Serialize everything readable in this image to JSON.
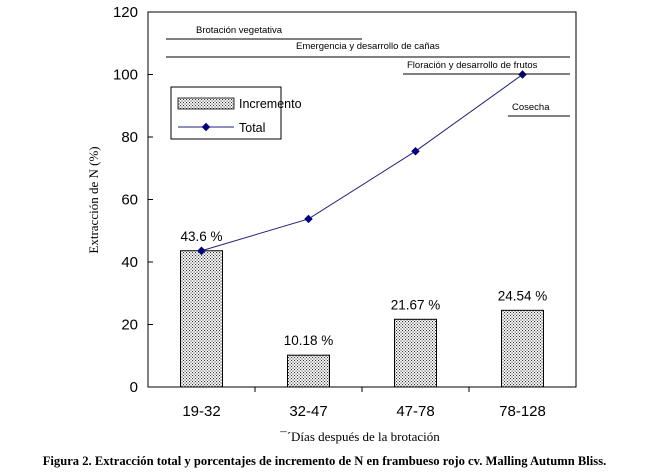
{
  "chart_data": {
    "type": "bar",
    "categories": [
      "19-32",
      "32-47",
      "47-78",
      "78-128"
    ],
    "series": [
      {
        "name": "Incremento",
        "kind": "bar",
        "values": [
          43.6,
          10.18,
          21.67,
          24.54
        ]
      },
      {
        "name": "Total",
        "kind": "line",
        "values": [
          43.6,
          53.78,
          75.45,
          99.99
        ]
      }
    ],
    "data_labels": [
      "43.6 %",
      "10.18 %",
      "21.67 %",
      "24.54 %"
    ],
    "ylim": [
      0,
      120
    ],
    "yticks": [
      0,
      20,
      40,
      60,
      80,
      100,
      120
    ],
    "ylabel": "Extracción de N  (%)",
    "xlabel": "¯´Días después de la brotación",
    "legend": {
      "position": "upper-left",
      "bar_label": "Incremento",
      "line_label": "Total"
    },
    "phases": [
      {
        "label": "Brotación vegetativa",
        "from_category": "19-32",
        "to_category": "32-47"
      },
      {
        "label": "Emergencia y desarrollo de cañas",
        "from_category": "19-32",
        "to_category": "78-128"
      },
      {
        "label": "Floración y desarrollo de frutos",
        "from_category": "47-78",
        "to_category": "78-128"
      },
      {
        "label": "Cosecha",
        "from_category": "78-128",
        "to_category": "78-128"
      }
    ],
    "colors": {
      "bar_fill": "#ffffff",
      "bar_pattern": "#333333",
      "line": "#1f1f7a",
      "marker": "#000080"
    }
  },
  "caption": "Figura 2. Extracción total y porcentajes de incremento de N en frambueso rojo  cv. Malling Autumn Bliss."
}
